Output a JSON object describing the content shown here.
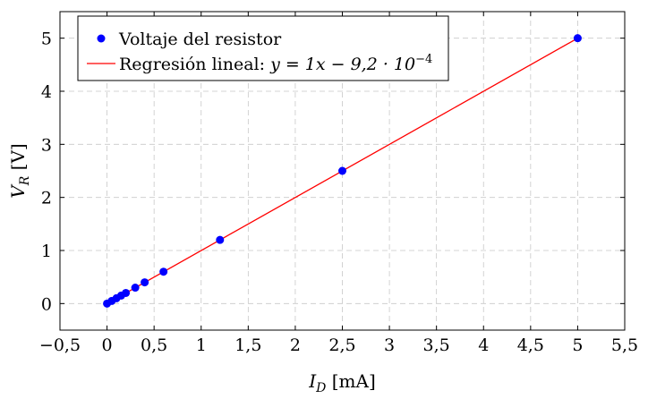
{
  "chart_data": {
    "type": "scatter",
    "xlabel": {
      "base": "I",
      "sub": "D",
      "unit": " [mA]"
    },
    "ylabel": {
      "base": "V",
      "sub": "R",
      "unit": " [V]"
    },
    "xlim": [
      -0.5,
      5.5
    ],
    "ylim": [
      -0.5,
      5.5
    ],
    "x_ticks": [
      -0.5,
      0,
      0.5,
      1,
      1.5,
      2,
      2.5,
      3,
      3.5,
      4,
      4.5,
      5,
      5.5
    ],
    "x_tick_labels": [
      "−0,5",
      "0",
      "0,5",
      "1",
      "1,5",
      "2",
      "2,5",
      "3",
      "3,5",
      "4",
      "4,5",
      "5",
      "5,5"
    ],
    "y_ticks": [
      0,
      1,
      2,
      3,
      4,
      5
    ],
    "y_tick_labels": [
      "0",
      "1",
      "2",
      "3",
      "4",
      "5"
    ],
    "grid": true,
    "legend_position": "top-left",
    "series": [
      {
        "name": "Voltaje del resistor",
        "kind": "scatter",
        "color": "#0000ff",
        "x": [
          0,
          0.05,
          0.1,
          0.15,
          0.2,
          0.3,
          0.4,
          0.6,
          1.2,
          2.5,
          5
        ],
        "y": [
          0,
          0.05,
          0.1,
          0.15,
          0.2,
          0.3,
          0.4,
          0.6,
          1.2,
          2.5,
          5
        ]
      },
      {
        "name": "Regresión lineal: y = 1x − 9,2 · 10⁻⁴",
        "kind": "line",
        "color": "#ff0000",
        "slope": 1,
        "intercept": -0.00092,
        "x_range": [
          0,
          5
        ]
      }
    ],
    "legend": {
      "scatter_label": "Voltaje del resistor",
      "line_label_prefix": "Regresión lineal: ",
      "line_label_formula": "y = 1x − 9,2 · 10",
      "line_label_exponent": "−4"
    }
  }
}
